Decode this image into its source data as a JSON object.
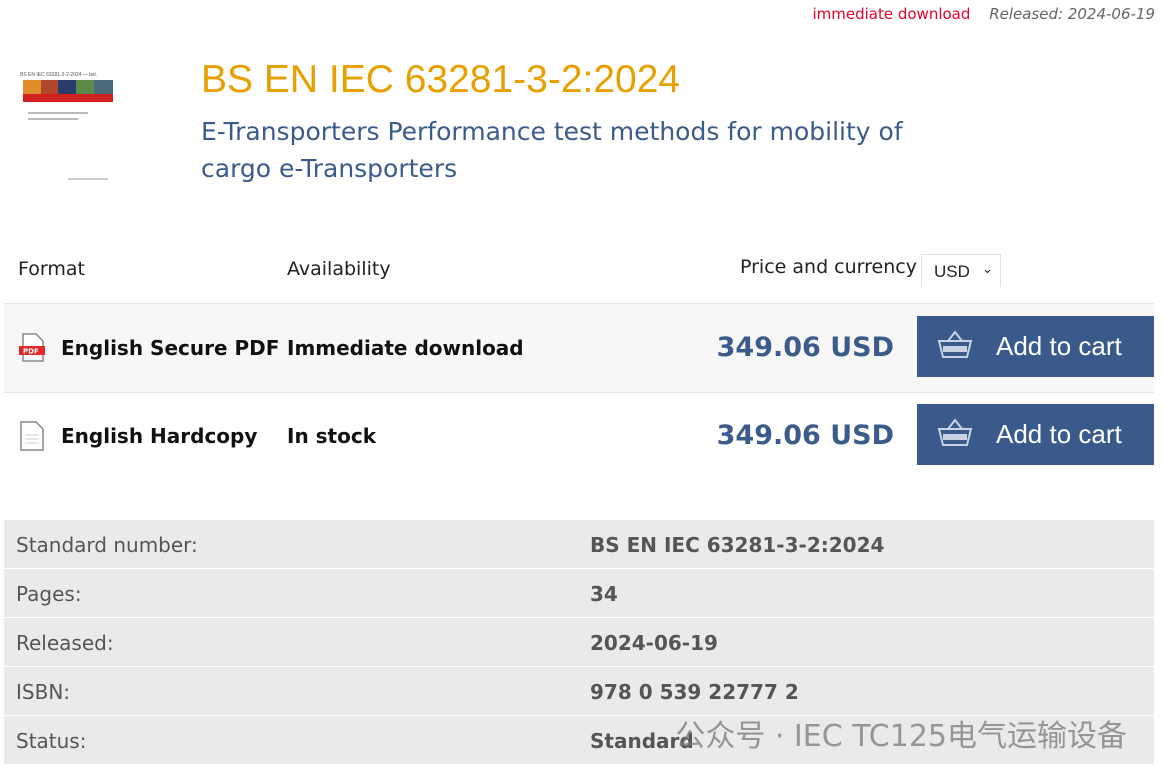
{
  "topbar": {
    "availability": "immediate download",
    "released": "Released: 2024-06-19"
  },
  "product": {
    "title": "BS EN IEC 63281-3-2:2024",
    "subtitle": "E-Transporters Performance test methods for mobility of cargo e-Transporters",
    "cover_text": "BS EN IEC 63281-3-2:2024 — bsi."
  },
  "table": {
    "headers": {
      "format": "Format",
      "availability": "Availability",
      "price": "Price and currency"
    },
    "currency": "USD",
    "rows": [
      {
        "format": "English Secure PDF",
        "icon": "pdf-file-icon",
        "availability": "Immediate download",
        "price": "349.06 USD",
        "button": "Add to cart"
      },
      {
        "format": "English Hardcopy",
        "icon": "document-icon",
        "availability": "In stock",
        "price": "349.06 USD",
        "button": "Add to cart"
      }
    ]
  },
  "info": [
    {
      "label": "Standard number:",
      "value": "BS EN IEC 63281-3-2:2024"
    },
    {
      "label": "Pages:",
      "value": "34"
    },
    {
      "label": "Released:",
      "value": "2024-06-19"
    },
    {
      "label": "ISBN:",
      "value": "978 0 539 22777 2"
    },
    {
      "label": "Status:",
      "value": "Standard"
    }
  ],
  "watermark": "公众号 · IEC TC125电气运输设备",
  "colors": {
    "title": "#e8a000",
    "accent": "#395a8a",
    "alert": "#e8002a"
  }
}
